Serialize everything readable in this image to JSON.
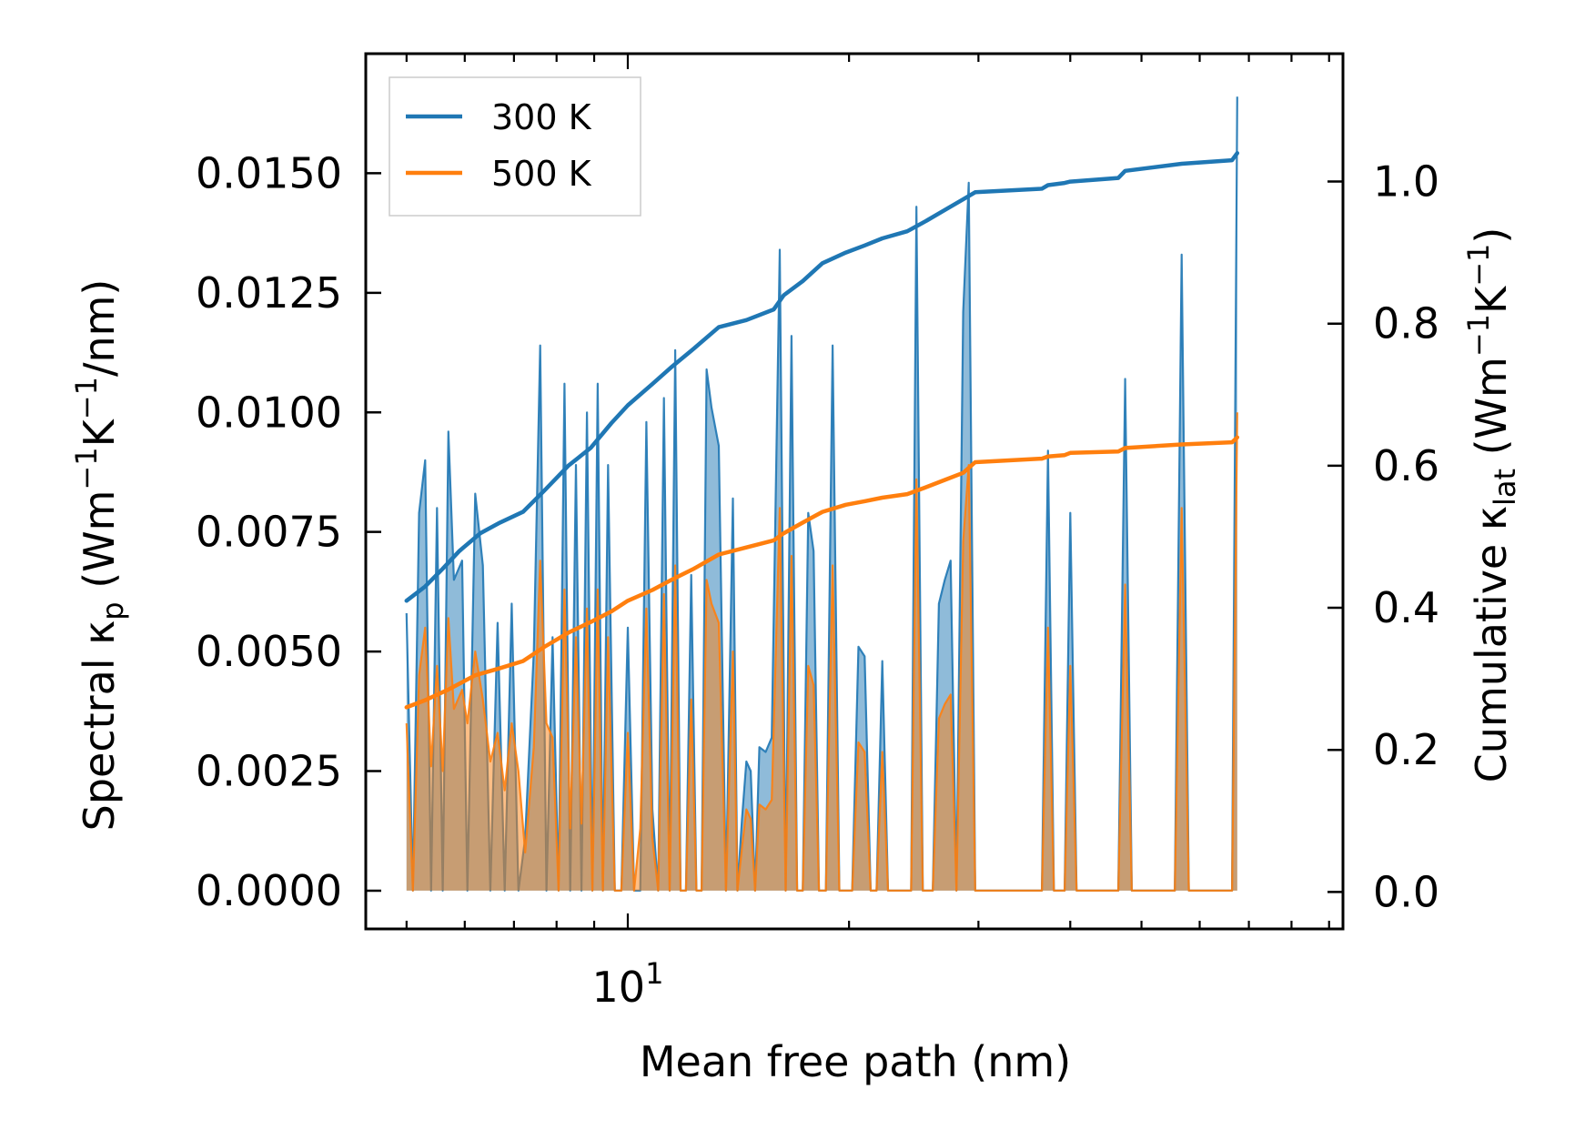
{
  "chart_data": {
    "type": "line",
    "title": "",
    "xlabel": "Mean free path (nm)",
    "xscale": "log",
    "xlim": [
      4.4,
      94
    ],
    "x_tick_labels": [
      {
        "x": 10,
        "base": "10",
        "exp": "1"
      }
    ],
    "y_left": {
      "label_parts": [
        "Spectral κ",
        "p",
        " (Wm",
        "−1",
        "K",
        "−1",
        "/nm)"
      ],
      "ylim": [
        -0.0008,
        0.0175
      ],
      "ticks": [
        0.0,
        0.0025,
        0.005,
        0.0075,
        0.01,
        0.0125,
        0.015
      ],
      "tick_labels": [
        "0.0000",
        "0.0025",
        "0.0050",
        "0.0075",
        "0.0100",
        "0.0125",
        "0.0150"
      ]
    },
    "y_right": {
      "label_parts": [
        "Cumulative κ",
        "lat",
        " (Wm",
        "−1",
        "K",
        "−1",
        ")"
      ],
      "ylim": [
        -0.052,
        1.18
      ],
      "ticks": [
        0.0,
        0.2,
        0.4,
        0.6,
        0.8,
        1.0
      ],
      "tick_labels": [
        "0.0",
        "0.2",
        "0.4",
        "0.6",
        "0.8",
        "1.0"
      ]
    },
    "legend": {
      "position": "upper-left",
      "entries": [
        "300 K",
        "500 K"
      ]
    },
    "series": [
      {
        "name": "300 K",
        "color": "#1f77b4",
        "spectral": [
          [
            5.0,
            0.0058
          ],
          [
            5.1,
            0.0
          ],
          [
            5.2,
            0.0079
          ],
          [
            5.3,
            0.009
          ],
          [
            5.4,
            0.0
          ],
          [
            5.5,
            0.008
          ],
          [
            5.6,
            0.0
          ],
          [
            5.7,
            0.0096
          ],
          [
            5.8,
            0.0065
          ],
          [
            5.95,
            0.0069
          ],
          [
            6.05,
            0.0
          ],
          [
            6.2,
            0.0083
          ],
          [
            6.35,
            0.0068
          ],
          [
            6.5,
            0.0
          ],
          [
            6.65,
            0.0056
          ],
          [
            6.8,
            0.0
          ],
          [
            6.95,
            0.006
          ],
          [
            7.1,
            0.0
          ],
          [
            7.25,
            0.0011
          ],
          [
            7.45,
            0.005
          ],
          [
            7.6,
            0.0114
          ],
          [
            7.75,
            0.0
          ],
          [
            7.9,
            0.0053
          ],
          [
            8.05,
            0.0
          ],
          [
            8.2,
            0.0106
          ],
          [
            8.35,
            0.0
          ],
          [
            8.5,
            0.0089
          ],
          [
            8.65,
            0.0
          ],
          [
            8.8,
            0.01
          ],
          [
            8.95,
            0.0
          ],
          [
            9.1,
            0.0106
          ],
          [
            9.25,
            0.0
          ],
          [
            9.4,
            0.0089
          ],
          [
            9.6,
            0.0
          ],
          [
            9.8,
            0.0
          ],
          [
            10.0,
            0.0055
          ],
          [
            10.2,
            0.0
          ],
          [
            10.4,
            0.0
          ],
          [
            10.6,
            0.0098
          ],
          [
            10.8,
            0.0017
          ],
          [
            11.0,
            0.0
          ],
          [
            11.2,
            0.0103
          ],
          [
            11.4,
            0.0
          ],
          [
            11.6,
            0.0113
          ],
          [
            11.8,
            0.0
          ],
          [
            12.0,
            0.0
          ],
          [
            12.2,
            0.0066
          ],
          [
            12.4,
            0.0
          ],
          [
            12.6,
            0.0
          ],
          [
            12.8,
            0.0109
          ],
          [
            13.0,
            0.0101
          ],
          [
            13.3,
            0.0093
          ],
          [
            13.6,
            0.0
          ],
          [
            13.9,
            0.0082
          ],
          [
            14.1,
            0.0
          ],
          [
            14.3,
            0.0015
          ],
          [
            14.5,
            0.0027
          ],
          [
            14.7,
            0.0025
          ],
          [
            14.9,
            0.0
          ],
          [
            15.1,
            0.003
          ],
          [
            15.4,
            0.0029
          ],
          [
            15.7,
            0.0032
          ],
          [
            16.1,
            0.0134
          ],
          [
            16.4,
            0.0
          ],
          [
            16.7,
            0.0116
          ],
          [
            17.0,
            0.0
          ],
          [
            17.3,
            0.0
          ],
          [
            17.6,
            0.0079
          ],
          [
            17.9,
            0.0071
          ],
          [
            18.2,
            0.0
          ],
          [
            18.6,
            0.0
          ],
          [
            19.0,
            0.0114
          ],
          [
            19.4,
            0.0
          ],
          [
            19.8,
            0.0
          ],
          [
            20.2,
            0.0
          ],
          [
            20.6,
            0.0051
          ],
          [
            21.0,
            0.0049
          ],
          [
            21.4,
            0.0
          ],
          [
            21.8,
            0.0
          ],
          [
            22.2,
            0.0048
          ],
          [
            22.6,
            0.0
          ],
          [
            22.9,
            0.0
          ],
          [
            24.0,
            0.0
          ],
          [
            24.3,
            0.0
          ],
          [
            24.7,
            0.0143
          ],
          [
            25.2,
            0.0
          ],
          [
            25.7,
            0.0
          ],
          [
            26.0,
            0.0
          ],
          [
            26.5,
            0.006
          ],
          [
            27.0,
            0.0065
          ],
          [
            27.5,
            0.0069
          ],
          [
            28.0,
            0.0
          ],
          [
            28.6,
            0.0121
          ],
          [
            29.1,
            0.0148
          ],
          [
            29.7,
            0.0
          ],
          [
            36.6,
            0.0
          ],
          [
            37.3,
            0.0092
          ],
          [
            38.0,
            0.0
          ],
          [
            39.3,
            0.0
          ],
          [
            40.0,
            0.0079
          ],
          [
            40.8,
            0.0
          ],
          [
            46.5,
            0.0
          ],
          [
            47.5,
            0.0107
          ],
          [
            48.5,
            0.0
          ],
          [
            55.5,
            0.0
          ],
          [
            56.7,
            0.0133
          ],
          [
            58.0,
            0.0
          ],
          [
            65.0,
            0.0
          ],
          [
            66.4,
            0.0
          ],
          [
            67.5,
            0.0166
          ]
        ],
        "cumulative": [
          [
            5.0,
            0.41
          ],
          [
            5.3,
            0.43
          ],
          [
            5.6,
            0.455
          ],
          [
            5.9,
            0.48
          ],
          [
            6.3,
            0.505
          ],
          [
            6.7,
            0.52
          ],
          [
            7.2,
            0.535
          ],
          [
            7.7,
            0.565
          ],
          [
            8.3,
            0.6
          ],
          [
            8.9,
            0.625
          ],
          [
            9.5,
            0.66
          ],
          [
            10.0,
            0.685
          ],
          [
            10.8,
            0.715
          ],
          [
            11.5,
            0.74
          ],
          [
            12.3,
            0.765
          ],
          [
            13.3,
            0.795
          ],
          [
            14.5,
            0.805
          ],
          [
            15.8,
            0.82
          ],
          [
            16.3,
            0.84
          ],
          [
            17.3,
            0.86
          ],
          [
            18.4,
            0.885
          ],
          [
            19.8,
            0.9
          ],
          [
            21.0,
            0.91
          ],
          [
            22.2,
            0.92
          ],
          [
            24.0,
            0.93
          ],
          [
            25.5,
            0.945
          ],
          [
            27.0,
            0.96
          ],
          [
            28.6,
            0.975
          ],
          [
            29.7,
            0.985
          ],
          [
            36.6,
            0.99
          ],
          [
            37.3,
            0.995
          ],
          [
            39.3,
            0.998
          ],
          [
            40.0,
            1.0
          ],
          [
            46.5,
            1.005
          ],
          [
            47.5,
            1.015
          ],
          [
            56.7,
            1.025
          ],
          [
            66.4,
            1.03
          ],
          [
            67.5,
            1.04
          ]
        ]
      },
      {
        "name": "500 K",
        "color": "#ff7f0e",
        "spectral": [
          [
            5.0,
            0.0035
          ],
          [
            5.1,
            0.0
          ],
          [
            5.2,
            0.0045
          ],
          [
            5.3,
            0.0055
          ],
          [
            5.4,
            0.0026
          ],
          [
            5.5,
            0.0047
          ],
          [
            5.6,
            0.0025
          ],
          [
            5.7,
            0.0057
          ],
          [
            5.8,
            0.0038
          ],
          [
            5.95,
            0.0042
          ],
          [
            6.05,
            0.0035
          ],
          [
            6.2,
            0.005
          ],
          [
            6.35,
            0.004
          ],
          [
            6.5,
            0.0027
          ],
          [
            6.65,
            0.0033
          ],
          [
            6.8,
            0.0021
          ],
          [
            6.95,
            0.0035
          ],
          [
            7.1,
            0.0025
          ],
          [
            7.25,
            0.0008
          ],
          [
            7.45,
            0.003
          ],
          [
            7.6,
            0.0069
          ],
          [
            7.75,
            0.0035
          ],
          [
            7.9,
            0.0032
          ],
          [
            8.05,
            0.0
          ],
          [
            8.2,
            0.0063
          ],
          [
            8.35,
            0.0013
          ],
          [
            8.5,
            0.0053
          ],
          [
            8.65,
            0.0014
          ],
          [
            8.8,
            0.0059
          ],
          [
            8.95,
            0.0
          ],
          [
            9.1,
            0.0063
          ],
          [
            9.25,
            0.0
          ],
          [
            9.4,
            0.0053
          ],
          [
            9.6,
            0.0
          ],
          [
            9.8,
            0.0
          ],
          [
            10.0,
            0.0033
          ],
          [
            10.2,
            0.0
          ],
          [
            10.4,
            0.0013
          ],
          [
            10.6,
            0.0059
          ],
          [
            10.8,
            0.0011
          ],
          [
            11.0,
            0.0
          ],
          [
            11.2,
            0.0062
          ],
          [
            11.4,
            0.0
          ],
          [
            11.6,
            0.0068
          ],
          [
            11.8,
            0.0
          ],
          [
            12.0,
            0.0
          ],
          [
            12.2,
            0.004
          ],
          [
            12.4,
            0.0
          ],
          [
            12.6,
            0.0
          ],
          [
            12.8,
            0.0065
          ],
          [
            13.0,
            0.006
          ],
          [
            13.3,
            0.0056
          ],
          [
            13.6,
            0.0
          ],
          [
            13.9,
            0.005
          ],
          [
            14.1,
            0.0
          ],
          [
            14.3,
            0.0009
          ],
          [
            14.5,
            0.0017
          ],
          [
            14.7,
            0.0015
          ],
          [
            14.9,
            0.0
          ],
          [
            15.1,
            0.0018
          ],
          [
            15.4,
            0.0017
          ],
          [
            15.7,
            0.0019
          ],
          [
            16.1,
            0.008
          ],
          [
            16.4,
            0.0
          ],
          [
            16.7,
            0.007
          ],
          [
            17.0,
            0.0
          ],
          [
            17.3,
            0.0
          ],
          [
            17.6,
            0.0047
          ],
          [
            17.9,
            0.0043
          ],
          [
            18.2,
            0.0
          ],
          [
            18.6,
            0.0
          ],
          [
            19.0,
            0.0068
          ],
          [
            19.4,
            0.0
          ],
          [
            19.8,
            0.0
          ],
          [
            20.2,
            0.0
          ],
          [
            20.6,
            0.0031
          ],
          [
            21.0,
            0.0029
          ],
          [
            21.4,
            0.0
          ],
          [
            21.8,
            0.0
          ],
          [
            22.2,
            0.0029
          ],
          [
            22.6,
            0.0
          ],
          [
            22.9,
            0.0
          ],
          [
            24.0,
            0.0
          ],
          [
            24.3,
            0.0
          ],
          [
            24.7,
            0.0086
          ],
          [
            25.2,
            0.0
          ],
          [
            25.7,
            0.0
          ],
          [
            26.0,
            0.0
          ],
          [
            26.5,
            0.0036
          ],
          [
            27.0,
            0.0039
          ],
          [
            27.5,
            0.0041
          ],
          [
            28.0,
            0.0
          ],
          [
            28.6,
            0.0073
          ],
          [
            29.1,
            0.0089
          ],
          [
            29.7,
            0.0
          ],
          [
            36.6,
            0.0
          ],
          [
            37.3,
            0.0055
          ],
          [
            38.0,
            0.0
          ],
          [
            39.3,
            0.0
          ],
          [
            40.0,
            0.0047
          ],
          [
            40.8,
            0.0
          ],
          [
            46.5,
            0.0
          ],
          [
            47.5,
            0.0064
          ],
          [
            48.5,
            0.0
          ],
          [
            55.5,
            0.0
          ],
          [
            56.7,
            0.008
          ],
          [
            58.0,
            0.0
          ],
          [
            65.0,
            0.0
          ],
          [
            66.4,
            0.0
          ],
          [
            67.5,
            0.01
          ]
        ],
        "cumulative": [
          [
            5.0,
            0.26
          ],
          [
            5.3,
            0.27
          ],
          [
            5.7,
            0.285
          ],
          [
            6.2,
            0.305
          ],
          [
            6.7,
            0.315
          ],
          [
            7.2,
            0.325
          ],
          [
            7.7,
            0.345
          ],
          [
            8.3,
            0.365
          ],
          [
            8.9,
            0.38
          ],
          [
            9.5,
            0.395
          ],
          [
            10.0,
            0.41
          ],
          [
            10.8,
            0.425
          ],
          [
            11.5,
            0.44
          ],
          [
            12.3,
            0.455
          ],
          [
            13.3,
            0.475
          ],
          [
            14.5,
            0.485
          ],
          [
            15.8,
            0.495
          ],
          [
            16.3,
            0.505
          ],
          [
            17.3,
            0.52
          ],
          [
            18.4,
            0.535
          ],
          [
            19.8,
            0.545
          ],
          [
            21.0,
            0.55
          ],
          [
            22.2,
            0.555
          ],
          [
            24.0,
            0.56
          ],
          [
            25.5,
            0.57
          ],
          [
            27.0,
            0.58
          ],
          [
            28.6,
            0.59
          ],
          [
            29.7,
            0.605
          ],
          [
            36.6,
            0.61
          ],
          [
            37.3,
            0.613
          ],
          [
            39.3,
            0.615
          ],
          [
            40.0,
            0.618
          ],
          [
            46.5,
            0.62
          ],
          [
            47.5,
            0.625
          ],
          [
            56.7,
            0.63
          ],
          [
            66.4,
            0.633
          ],
          [
            67.5,
            0.64
          ]
        ]
      }
    ]
  }
}
